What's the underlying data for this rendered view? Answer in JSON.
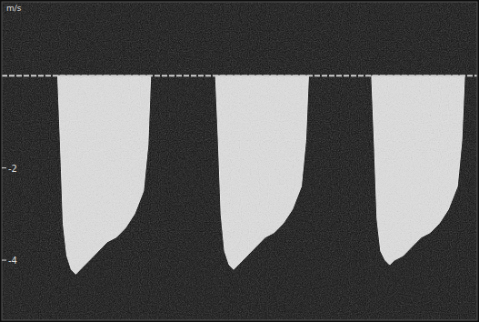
{
  "chart_data": {
    "type": "area",
    "y_label": "m/s",
    "x": [
      62,
      65,
      68,
      72,
      77,
      82,
      87,
      97,
      107,
      117,
      127,
      137,
      147,
      157,
      162,
      165,
      200,
      237,
      240,
      243,
      247,
      252,
      257,
      262,
      272,
      282,
      292,
      302,
      312,
      322,
      332,
      337,
      340,
      375,
      410,
      413,
      416,
      420,
      425,
      430,
      435,
      445,
      455,
      465,
      475,
      485,
      495,
      505,
      510,
      513
    ],
    "xlim": [
      0,
      527
    ],
    "series": [
      {
        "color": "#f2f2f2",
        "values": [
          0,
          -1.5,
          -3.2,
          -3.9,
          -4.2,
          -4.3,
          -4.2,
          -4.0,
          -3.8,
          -3.6,
          -3.5,
          -3.3,
          -3.0,
          -2.5,
          -1.5,
          0,
          null,
          0,
          -1.4,
          -3.0,
          -3.8,
          -4.1,
          -4.2,
          -4.1,
          -3.9,
          -3.7,
          -3.5,
          -3.4,
          -3.2,
          -2.9,
          -2.4,
          -1.4,
          0,
          null,
          0,
          -1.5,
          -3.1,
          -3.8,
          -4.0,
          -4.1,
          -4.0,
          -3.9,
          -3.7,
          -3.5,
          -3.4,
          -3.2,
          -2.9,
          -2.4,
          -1.4,
          0
        ]
      }
    ],
    "ylim": [
      -5.3,
      1.6
    ],
    "yticks": [
      -4,
      -2
    ],
    "tick_labels": "y",
    "grid": false
  }
}
